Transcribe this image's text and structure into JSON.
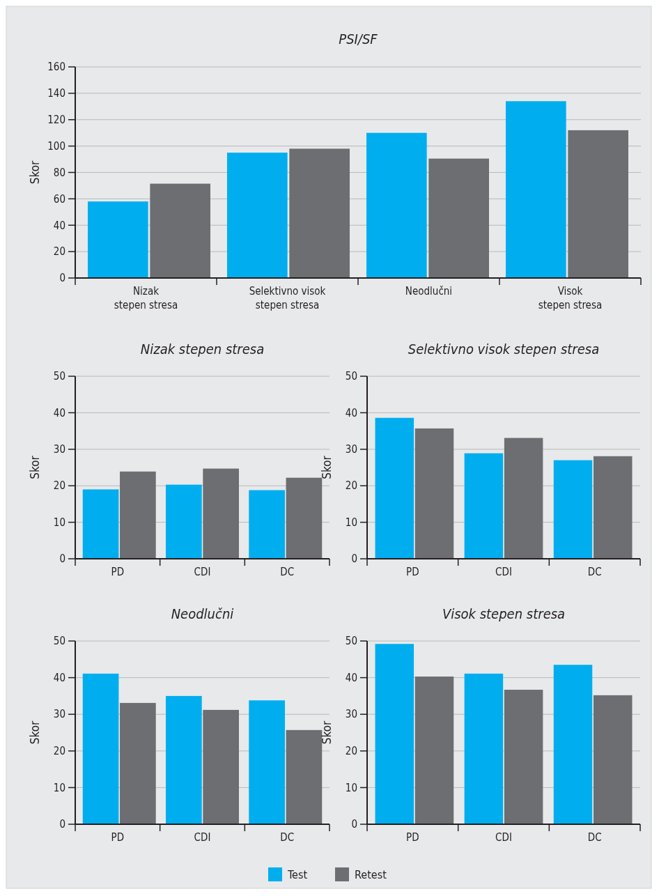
{
  "chart_data": [
    {
      "type": "bar",
      "title": "PSI/SF",
      "ylabel": "Skor",
      "categories": [
        "Nizak\nstepen stresa",
        "Selektivno visok\nstepen stresa",
        "Neodlučni",
        "Visok\nstepen stresa"
      ],
      "series": [
        {
          "name": "Test",
          "color": "#00aeef",
          "values": [
            58,
            95,
            110,
            134
          ]
        },
        {
          "name": "Retest",
          "color": "#6d6e71",
          "values": [
            71.5,
            98,
            90.5,
            112
          ]
        }
      ],
      "ylim": [
        0,
        160
      ],
      "yticks": [
        0,
        20,
        40,
        60,
        80,
        100,
        120,
        140,
        160
      ],
      "grid": "y",
      "legend": "bottom"
    },
    {
      "type": "bar",
      "title": "Nizak stepen stresa",
      "ylabel": "Skor",
      "categories": [
        "PD",
        "CDI",
        "DC"
      ],
      "series": [
        {
          "color": "#00aeef",
          "values": [
            19,
            20.3,
            18.8
          ]
        },
        {
          "color": "#6d6e71",
          "values": [
            23.9,
            24.7,
            22.2
          ]
        }
      ],
      "ylim": [
        0,
        50
      ],
      "yticks": [
        0,
        10,
        20,
        30,
        40,
        50
      ],
      "grid": "y"
    },
    {
      "type": "bar",
      "title": "Selektivno visok stepen stresa",
      "ylabel": "Skor",
      "categories": [
        "PD",
        "CDI",
        "DC"
      ],
      "series": [
        {
          "color": "#00aeef",
          "values": [
            38.6,
            28.9,
            27
          ]
        },
        {
          "color": "#6d6e71",
          "values": [
            35.7,
            33.1,
            28.1
          ]
        }
      ],
      "ylim": [
        0,
        50
      ],
      "yticks": [
        0,
        10,
        20,
        30,
        40,
        50
      ],
      "grid": "y"
    },
    {
      "type": "bar",
      "title": "Neodlučni",
      "ylabel": "Skor",
      "categories": [
        "PD",
        "CDI",
        "DC"
      ],
      "series": [
        {
          "color": "#00aeef",
          "values": [
            41.1,
            35,
            33.8
          ]
        },
        {
          "color": "#6d6e71",
          "values": [
            33.1,
            31.2,
            25.7
          ]
        }
      ],
      "ylim": [
        0,
        50
      ],
      "yticks": [
        0,
        10,
        20,
        30,
        40,
        50
      ],
      "grid": "y"
    },
    {
      "type": "bar",
      "title": "Visok stepen stresa",
      "ylabel": "Skor",
      "categories": [
        "PD",
        "CDI",
        "DC"
      ],
      "series": [
        {
          "color": "#00aeef",
          "values": [
            49.2,
            41.1,
            43.5
          ]
        },
        {
          "color": "#6d6e71",
          "values": [
            40.3,
            36.7,
            35.2
          ]
        }
      ],
      "ylim": [
        0,
        50
      ],
      "yticks": [
        0,
        10,
        20,
        30,
        40,
        50
      ],
      "grid": "y"
    }
  ]
}
